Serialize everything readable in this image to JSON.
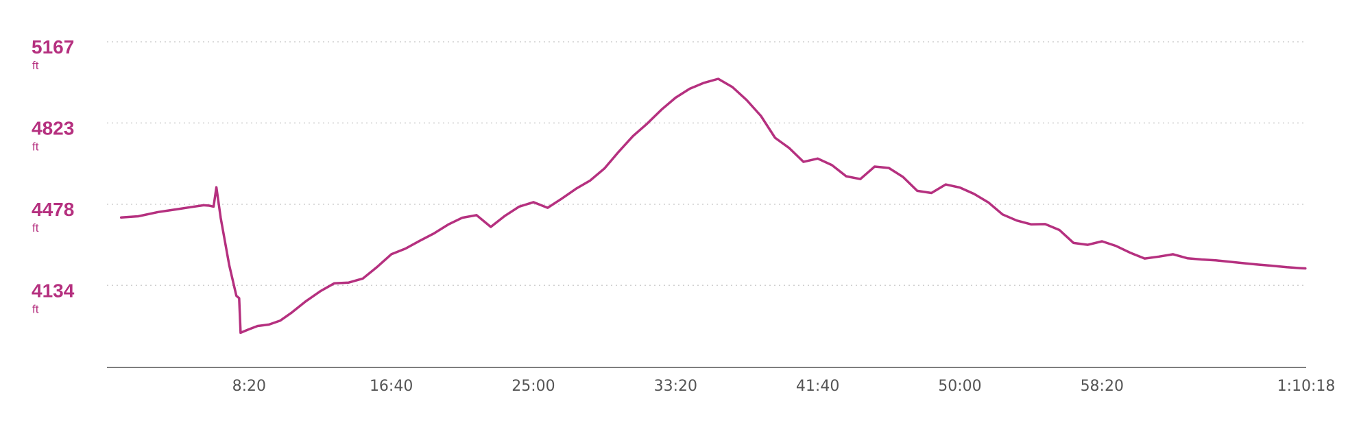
{
  "chart_data": {
    "type": "line",
    "xlabel": "",
    "ylabel": "",
    "y_unit": "ft",
    "y_ticks": [
      {
        "value": 5167,
        "label": "5167",
        "unit": "ft"
      },
      {
        "value": 4823,
        "label": "4823",
        "unit": "ft"
      },
      {
        "value": 4478,
        "label": "4478",
        "unit": "ft"
      },
      {
        "value": 4134,
        "label": "4134",
        "unit": "ft"
      }
    ],
    "x_ticks": [
      {
        "value": 500,
        "label": "8:20"
      },
      {
        "value": 1000,
        "label": "16:40"
      },
      {
        "value": 1500,
        "label": "25:00"
      },
      {
        "value": 2000,
        "label": "33:20"
      },
      {
        "value": 2500,
        "label": "41:40"
      },
      {
        "value": 3000,
        "label": "50:00"
      },
      {
        "value": 3500,
        "label": "58:20"
      },
      {
        "value": 4218,
        "label": "1:10:18"
      }
    ],
    "xlim": [
      0,
      4218
    ],
    "ylim": [
      3786,
      5167
    ],
    "grid": true,
    "colors": {
      "line": "#b5307f",
      "ytick_label": "#b5307f",
      "grid": "#cfcfcf",
      "axis": "#555555"
    },
    "series": [
      {
        "values": [
          [
            50,
            4422
          ],
          [
            110,
            4427
          ],
          [
            180,
            4445
          ],
          [
            240,
            4456
          ],
          [
            300,
            4467
          ],
          [
            340,
            4474
          ],
          [
            360,
            4472
          ],
          [
            375,
            4468
          ],
          [
            385,
            4550
          ],
          [
            400,
            4420
          ],
          [
            430,
            4220
          ],
          [
            455,
            4090
          ],
          [
            465,
            4080
          ],
          [
            470,
            3933
          ],
          [
            500,
            3948
          ],
          [
            530,
            3962
          ],
          [
            570,
            3968
          ],
          [
            610,
            3985
          ],
          [
            650,
            4019
          ],
          [
            700,
            4067
          ],
          [
            750,
            4109
          ],
          [
            800,
            4143
          ],
          [
            850,
            4146
          ],
          [
            900,
            4163
          ],
          [
            950,
            4212
          ],
          [
            1000,
            4266
          ],
          [
            1050,
            4290
          ],
          [
            1100,
            4323
          ],
          [
            1150,
            4354
          ],
          [
            1200,
            4392
          ],
          [
            1250,
            4421
          ],
          [
            1300,
            4432
          ],
          [
            1350,
            4382
          ],
          [
            1400,
            4429
          ],
          [
            1450,
            4468
          ],
          [
            1500,
            4487
          ],
          [
            1550,
            4463
          ],
          [
            1600,
            4502
          ],
          [
            1650,
            4544
          ],
          [
            1700,
            4579
          ],
          [
            1750,
            4630
          ],
          [
            1800,
            4701
          ],
          [
            1850,
            4767
          ],
          [
            1900,
            4820
          ],
          [
            1950,
            4879
          ],
          [
            2000,
            4930
          ],
          [
            2050,
            4968
          ],
          [
            2100,
            4993
          ],
          [
            2150,
            5010
          ],
          [
            2200,
            4975
          ],
          [
            2250,
            4920
          ],
          [
            2300,
            4853
          ],
          [
            2350,
            4760
          ],
          [
            2400,
            4716
          ],
          [
            2450,
            4658
          ],
          [
            2500,
            4672
          ],
          [
            2550,
            4644
          ],
          [
            2600,
            4597
          ],
          [
            2650,
            4585
          ],
          [
            2700,
            4638
          ],
          [
            2750,
            4632
          ],
          [
            2800,
            4594
          ],
          [
            2850,
            4535
          ],
          [
            2900,
            4526
          ],
          [
            2950,
            4562
          ],
          [
            3000,
            4549
          ],
          [
            3050,
            4522
          ],
          [
            3100,
            4486
          ],
          [
            3150,
            4435
          ],
          [
            3200,
            4409
          ],
          [
            3250,
            4393
          ],
          [
            3300,
            4394
          ],
          [
            3350,
            4369
          ],
          [
            3400,
            4314
          ],
          [
            3450,
            4306
          ],
          [
            3500,
            4321
          ],
          [
            3550,
            4301
          ],
          [
            3600,
            4272
          ],
          [
            3650,
            4248
          ],
          [
            3700,
            4256
          ],
          [
            3750,
            4266
          ],
          [
            3800,
            4249
          ],
          [
            3850,
            4244
          ],
          [
            3900,
            4240
          ],
          [
            3950,
            4234
          ],
          [
            4000,
            4228
          ],
          [
            4050,
            4222
          ],
          [
            4100,
            4217
          ],
          [
            4150,
            4211
          ],
          [
            4200,
            4207
          ],
          [
            4215,
            4206
          ]
        ]
      }
    ]
  }
}
